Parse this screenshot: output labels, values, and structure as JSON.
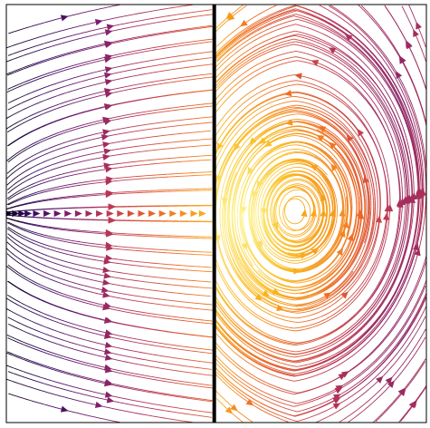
{
  "chart_data": {
    "type": "streamplot",
    "title": "",
    "xlabel": "",
    "ylabel": "",
    "xlim": [
      -1.0,
      1.0
    ],
    "ylim": [
      -1.0,
      1.0
    ],
    "grid": false,
    "legend": "none",
    "colormap": [
      "#000004",
      "#320a5e",
      "#781c6d",
      "#bc3754",
      "#ed6925",
      "#fbb61a",
      "#fcffa4"
    ],
    "background": "#ffffff",
    "frame_color": "#000000",
    "barrier": {
      "x": -0.01,
      "color": "#000000"
    },
    "vortex_center": [
      0.38,
      0.0
    ],
    "inflow_point": [
      -1.0,
      0.0
    ],
    "inflow_arrow_row_x": [
      -0.99,
      -0.96,
      -0.93,
      -0.9,
      -0.86,
      -0.81,
      -0.76,
      -0.71,
      -0.66,
      -0.61,
      -0.56,
      -0.51,
      -0.46,
      -0.41,
      -0.36,
      -0.31,
      -0.26,
      -0.21,
      -0.16,
      -0.11,
      -0.07
    ]
  }
}
